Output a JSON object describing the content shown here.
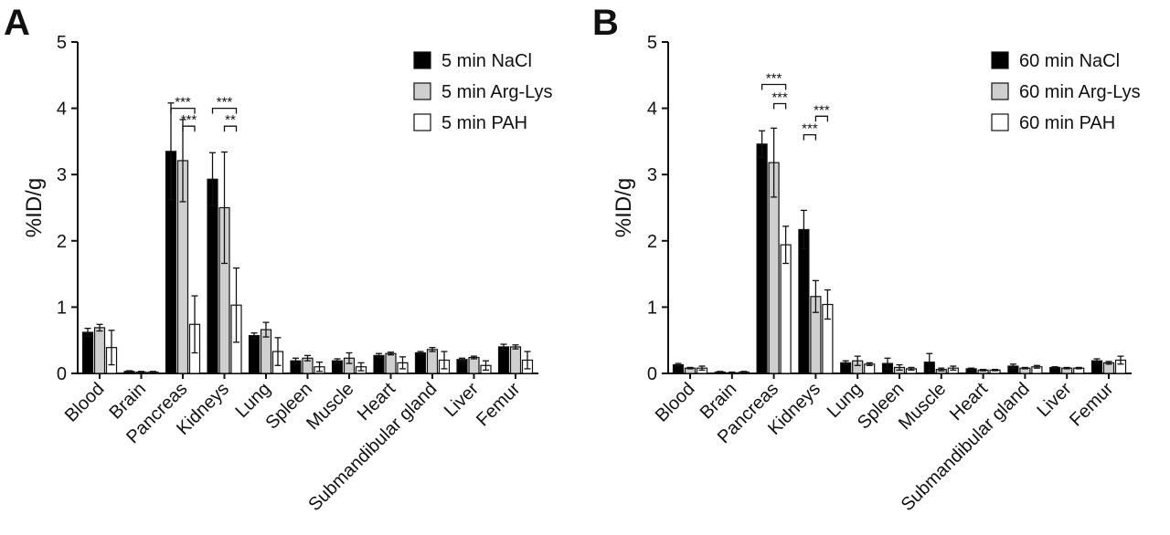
{
  "colors": {
    "NaCl": "#000000",
    "Arg-Lys": "#cfcfcf",
    "PAH": "#ffffff",
    "stroke": "#111111"
  },
  "chart_data": [
    {
      "panel_label": "A",
      "type": "bar",
      "ylabel": "%ID/g",
      "ylim": [
        0,
        5
      ],
      "yticks": [
        "0",
        "1",
        "2",
        "3",
        "4",
        "5"
      ],
      "grid": false,
      "legend_placement": "top-right",
      "categories": [
        "Blood",
        "Brain",
        "Pancreas",
        "Kidneys",
        "Lung",
        "Spleen",
        "Muscle",
        "Heart",
        "Submandibular gland",
        "Liver",
        "Femur"
      ],
      "series": [
        {
          "name": "5 min NaCl",
          "color": "#000000",
          "values": [
            0.62,
            0.03,
            3.35,
            2.93,
            0.57,
            0.19,
            0.19,
            0.27,
            0.31,
            0.21,
            0.4
          ],
          "errors": [
            0.06,
            0.01,
            0.73,
            0.4,
            0.04,
            0.04,
            0.03,
            0.03,
            0.02,
            0.02,
            0.04
          ]
        },
        {
          "name": "5 min Arg-Lys",
          "color": "#cfcfcf",
          "values": [
            0.69,
            0.02,
            3.21,
            2.5,
            0.66,
            0.23,
            0.23,
            0.3,
            0.36,
            0.24,
            0.4
          ],
          "errors": [
            0.05,
            0.01,
            0.62,
            0.84,
            0.11,
            0.04,
            0.08,
            0.02,
            0.03,
            0.02,
            0.03
          ]
        },
        {
          "name": "5 min PAH",
          "color": "#ffffff",
          "values": [
            0.39,
            0.02,
            0.74,
            1.03,
            0.33,
            0.1,
            0.1,
            0.16,
            0.2,
            0.12,
            0.2
          ],
          "errors": [
            0.26,
            0.01,
            0.43,
            0.56,
            0.21,
            0.07,
            0.06,
            0.09,
            0.13,
            0.07,
            0.13
          ]
        }
      ],
      "annotations": [
        {
          "category": "Pancreas",
          "from": 0,
          "to": 2,
          "text": "***",
          "y": 4.0
        },
        {
          "category": "Pancreas",
          "from": 1,
          "to": 2,
          "text": "***",
          "y": 3.73
        },
        {
          "category": "Kidneys",
          "from": 0,
          "to": 2,
          "text": "***",
          "y": 4.0
        },
        {
          "category": "Kidneys",
          "from": 1,
          "to": 2,
          "text": "**",
          "y": 3.73
        }
      ]
    },
    {
      "panel_label": "B",
      "type": "bar",
      "ylabel": "%ID/g",
      "ylim": [
        0,
        5
      ],
      "yticks": [
        "0",
        "1",
        "2",
        "3",
        "4",
        "5"
      ],
      "grid": false,
      "legend_placement": "top-right",
      "categories": [
        "Blood",
        "Brain",
        "Pancreas",
        "Kidneys",
        "Lung",
        "Spleen",
        "Muscle",
        "Heart",
        "Submandibular gland",
        "Liver",
        "Femur"
      ],
      "series": [
        {
          "name": "60 min NaCl",
          "color": "#000000",
          "values": [
            0.13,
            0.02,
            3.46,
            2.17,
            0.16,
            0.15,
            0.17,
            0.07,
            0.11,
            0.09,
            0.19
          ],
          "errors": [
            0.02,
            0.01,
            0.2,
            0.29,
            0.03,
            0.08,
            0.13,
            0.01,
            0.03,
            0.01,
            0.03
          ]
        },
        {
          "name": "60 min Arg-Lys",
          "color": "#cfcfcf",
          "values": [
            0.08,
            0.01,
            3.18,
            1.16,
            0.19,
            0.09,
            0.06,
            0.05,
            0.08,
            0.08,
            0.16
          ],
          "errors": [
            0.01,
            0.01,
            0.52,
            0.24,
            0.07,
            0.04,
            0.02,
            0.01,
            0.01,
            0.01,
            0.02
          ]
        },
        {
          "name": "60 min PAH",
          "color": "#ffffff",
          "values": [
            0.08,
            0.02,
            1.94,
            1.04,
            0.14,
            0.07,
            0.08,
            0.05,
            0.1,
            0.08,
            0.2
          ],
          "errors": [
            0.03,
            0.01,
            0.28,
            0.22,
            0.02,
            0.02,
            0.03,
            0.01,
            0.02,
            0.01,
            0.06
          ]
        }
      ],
      "annotations": [
        {
          "category": "Pancreas",
          "from": 0,
          "to": 2,
          "text": "***",
          "y": 4.36
        },
        {
          "category": "Pancreas",
          "from": 1,
          "to": 2,
          "text": "***",
          "y": 4.07
        },
        {
          "category": "Kidneys",
          "from": 1,
          "to": 2,
          "text": "***",
          "y": 3.88
        },
        {
          "category": "Kidneys",
          "from": 0,
          "to": 1,
          "text": "***",
          "y": 3.6
        }
      ]
    }
  ]
}
